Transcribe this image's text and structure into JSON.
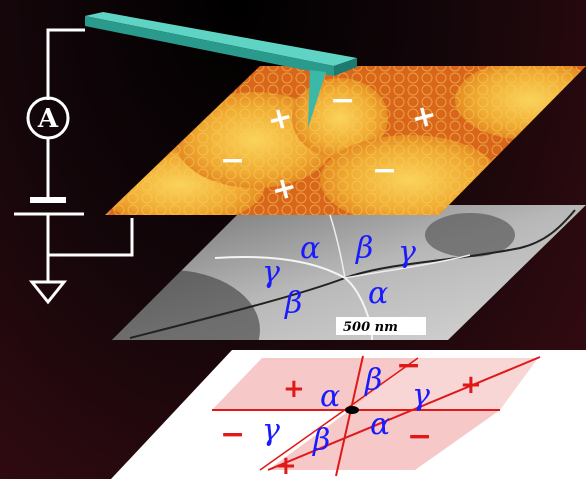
{
  "afm_layer": {
    "signs": [
      "+",
      "−",
      "+",
      "−",
      "−",
      "+"
    ],
    "colors": {
      "dark_domain": "#d9661a",
      "bright_domain": "#f2b63a",
      "sign": "#ffffff"
    }
  },
  "circuit": {
    "ammeter_label": "A",
    "wire_color": "#ffffff",
    "cantilever_color": "#5fd4c4"
  },
  "tem_layer": {
    "labels": [
      "α",
      "β",
      "γ",
      "γ",
      "β",
      "α"
    ],
    "scale_bar": "500 nm",
    "label_color": "#1a1aff"
  },
  "schematic_layer": {
    "greek": [
      "β",
      "α",
      "γ",
      "γ",
      "β",
      "α"
    ],
    "signs": [
      "−",
      "+",
      "+",
      "−",
      "−",
      "+"
    ],
    "line_color": "#e01818",
    "shade_color": "#f6c8c8"
  }
}
